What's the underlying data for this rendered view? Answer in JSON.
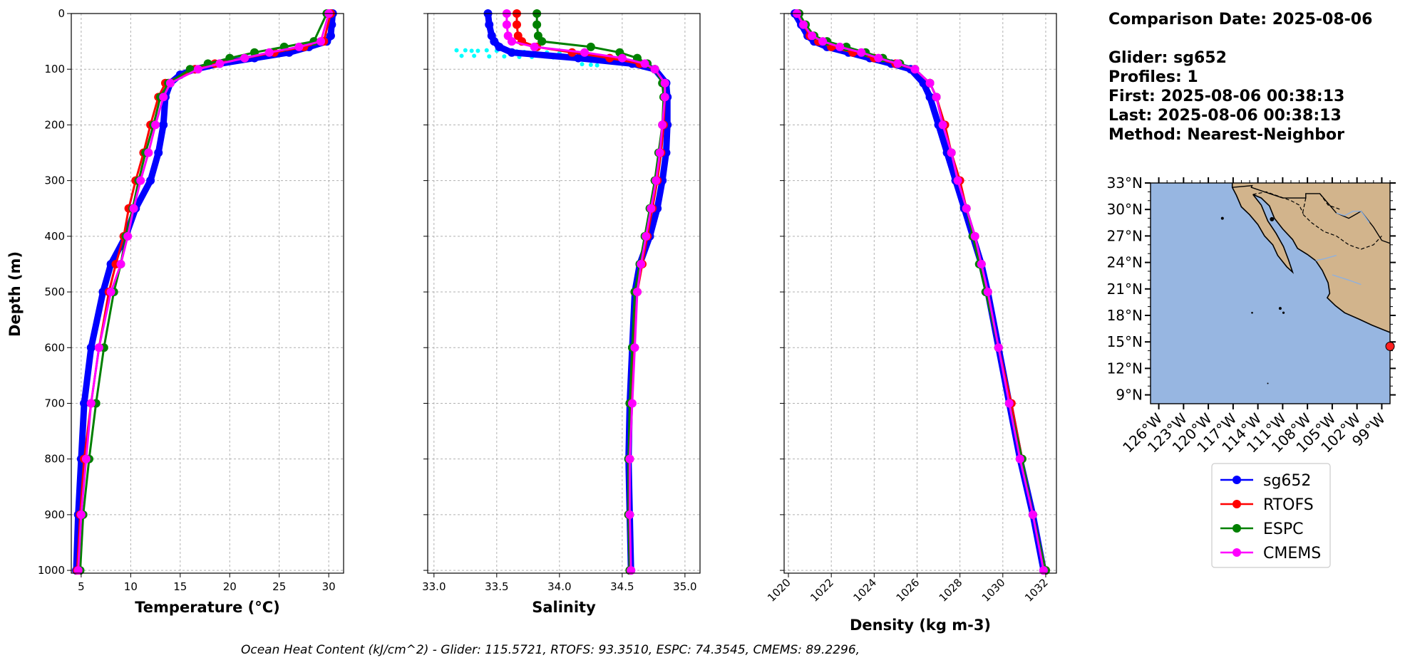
{
  "info": {
    "comparison_date": "Comparison Date: 2025-08-06",
    "glider": "Glider: sg652",
    "profiles": "Profiles: 1",
    "first": "First: 2025-08-06 00:38:13",
    "last": "Last: 2025-08-06 00:38:13",
    "method": "Method: Nearest-Neighbor"
  },
  "footer": "Ocean Heat Content (kJ/cm^2) - Glider: 115.5721,  RTOFS: 93.3510,  ESPC: 74.3545,  CMEMS: 89.2296,",
  "colors": {
    "sg652": "#0000ff",
    "glider_raw": "#00ffff",
    "RTOFS": "#ff0000",
    "ESPC": "#008000",
    "CMEMS": "#ff00ff",
    "ocean": "#97b6e1",
    "land": "#d2b48c",
    "grid": "#b0b0b0"
  },
  "chart_data": [
    {
      "type": "line",
      "id": "temperature",
      "xlabel": "Temperature (°C)",
      "ylabel": "Depth (m)",
      "xlim": [
        4.0,
        31.5
      ],
      "ylim": [
        1005,
        0
      ],
      "xticks": [
        5,
        10,
        15,
        20,
        25,
        30
      ],
      "yticks": [
        0,
        100,
        200,
        300,
        400,
        500,
        600,
        700,
        800,
        900,
        1000
      ],
      "grid": true,
      "series": [
        {
          "name": "sg652",
          "y": [
            0,
            20,
            40,
            50,
            60,
            70,
            80,
            90,
            100,
            110,
            125,
            150,
            200,
            250,
            300,
            350,
            400,
            450,
            500,
            600,
            700,
            800,
            900,
            1000
          ],
          "x": [
            30.4,
            30.3,
            30.2,
            29.8,
            28.0,
            26.0,
            22.5,
            19.0,
            16.5,
            15.0,
            14.0,
            13.5,
            13.3,
            12.8,
            12.0,
            10.5,
            9.5,
            8.0,
            7.2,
            6.0,
            5.3,
            5.0,
            4.7,
            4.5
          ]
        },
        {
          "name": "RTOFS",
          "y": [
            0,
            50,
            60,
            70,
            80,
            90,
            100,
            125,
            150,
            200,
            250,
            300,
            350,
            400,
            450,
            500,
            600,
            700,
            800,
            900,
            1000
          ],
          "x": [
            30.2,
            29.5,
            27.5,
            24.5,
            21.5,
            18.5,
            16.5,
            13.5,
            12.8,
            12.0,
            11.3,
            10.5,
            9.8,
            9.3,
            8.5,
            7.8,
            6.8,
            6.0,
            5.3,
            4.9,
            4.6
          ]
        },
        {
          "name": "ESPC",
          "y": [
            0,
            50,
            60,
            70,
            80,
            90,
            100,
            125,
            150,
            200,
            250,
            300,
            350,
            400,
            450,
            500,
            600,
            700,
            800,
            900,
            1000
          ],
          "x": [
            29.8,
            28.5,
            25.5,
            22.5,
            20.0,
            17.8,
            16.0,
            13.8,
            13.0,
            12.3,
            11.5,
            10.8,
            10.2,
            9.5,
            9.0,
            8.3,
            7.3,
            6.5,
            5.8,
            5.2,
            4.9
          ]
        },
        {
          "name": "CMEMS",
          "y": [
            0,
            50,
            60,
            70,
            80,
            90,
            100,
            125,
            150,
            200,
            250,
            300,
            350,
            400,
            450,
            500,
            600,
            700,
            800,
            900,
            1000
          ],
          "x": [
            30.0,
            29.2,
            27.0,
            24.0,
            21.5,
            19.0,
            16.8,
            14.0,
            13.3,
            12.5,
            11.8,
            11.0,
            10.3,
            9.7,
            9.0,
            8.0,
            6.8,
            6.0,
            5.5,
            5.0,
            4.7
          ]
        }
      ]
    },
    {
      "type": "line",
      "id": "salinity",
      "xlabel": "Salinity",
      "ylabel": "",
      "xlim": [
        32.95,
        35.12
      ],
      "ylim": [
        1005,
        0
      ],
      "xticks": [
        33.0,
        33.5,
        34.0,
        34.5,
        35.0
      ],
      "xtick_labels": [
        "33.0",
        "33.5",
        "34.0",
        "34.5",
        "35.0"
      ],
      "yticks": [
        0,
        100,
        200,
        300,
        400,
        500,
        600,
        700,
        800,
        900,
        1000
      ],
      "grid": true,
      "series": [
        {
          "name": "sg652",
          "y": [
            0,
            20,
            40,
            50,
            60,
            70,
            80,
            90,
            100,
            125,
            150,
            200,
            250,
            300,
            350,
            400,
            450,
            500,
            600,
            700,
            800,
            900,
            1000
          ],
          "x": [
            33.43,
            33.44,
            33.46,
            33.48,
            33.52,
            33.62,
            34.15,
            34.58,
            34.76,
            34.85,
            34.86,
            34.86,
            34.85,
            34.82,
            34.78,
            34.72,
            34.64,
            34.6,
            34.58,
            34.56,
            34.55,
            34.56,
            34.57
          ]
        },
        {
          "name": "RTOFS",
          "y": [
            0,
            20,
            40,
            50,
            60,
            70,
            80,
            90,
            100,
            125,
            150,
            200,
            250,
            300,
            350,
            400,
            450,
            500,
            600,
            700,
            800,
            900,
            1000
          ],
          "x": [
            33.66,
            33.66,
            33.67,
            33.7,
            33.82,
            34.1,
            34.4,
            34.64,
            34.76,
            34.84,
            34.84,
            34.83,
            34.81,
            34.78,
            34.74,
            34.7,
            34.66,
            34.62,
            34.59,
            34.57,
            34.56,
            34.55,
            34.56
          ]
        },
        {
          "name": "ESPC",
          "y": [
            0,
            20,
            40,
            50,
            60,
            70,
            80,
            90,
            100,
            125,
            150,
            200,
            250,
            300,
            350,
            400,
            450,
            500,
            600,
            700,
            800,
            900,
            1000
          ],
          "x": [
            33.82,
            33.82,
            33.83,
            33.86,
            34.25,
            34.48,
            34.62,
            34.7,
            34.76,
            34.82,
            34.83,
            34.82,
            34.79,
            34.76,
            34.72,
            34.68,
            34.64,
            34.6,
            34.58,
            34.56,
            34.55,
            34.55,
            34.56
          ]
        },
        {
          "name": "CMEMS",
          "y": [
            0,
            20,
            40,
            50,
            60,
            70,
            80,
            90,
            100,
            125,
            150,
            200,
            250,
            300,
            350,
            400,
            450,
            500,
            600,
            700,
            800,
            900,
            1000
          ],
          "x": [
            33.58,
            33.58,
            33.59,
            33.62,
            33.8,
            34.2,
            34.5,
            34.68,
            34.76,
            34.84,
            34.84,
            34.82,
            34.8,
            34.77,
            34.73,
            34.69,
            34.65,
            34.62,
            34.6,
            34.58,
            34.56,
            34.56,
            34.57
          ]
        }
      ],
      "scatter_points": {
        "name": "sg652 raw",
        "x": [
          33.18,
          33.25,
          33.3,
          33.35,
          33.42,
          33.5,
          33.58,
          33.66,
          33.72,
          33.8,
          33.9,
          34.0,
          34.1,
          33.22,
          33.32,
          33.44,
          33.56,
          33.68,
          33.78,
          33.95,
          34.18,
          34.25,
          34.3
        ],
        "y": [
          66,
          66,
          67,
          67,
          66,
          67,
          68,
          68,
          69,
          70,
          70,
          71,
          72,
          76,
          76,
          77,
          77,
          78,
          78,
          79,
          91,
          92,
          93
        ]
      }
    },
    {
      "type": "line",
      "id": "density",
      "xlabel": "Density (kg m-3)",
      "ylabel": "",
      "xlim": [
        1019.8,
        1032.5
      ],
      "ylim": [
        1005,
        0
      ],
      "xticks": [
        1020,
        1022,
        1024,
        1026,
        1028,
        1030,
        1032
      ],
      "yticks": [
        0,
        100,
        200,
        300,
        400,
        500,
        600,
        700,
        800,
        900,
        1000
      ],
      "grid": true,
      "series": [
        {
          "name": "sg652",
          "y": [
            0,
            20,
            40,
            50,
            60,
            70,
            80,
            90,
            100,
            125,
            150,
            200,
            250,
            300,
            350,
            400,
            450,
            500,
            600,
            700,
            800,
            900,
            1000
          ],
          "x": [
            1020.3,
            1020.6,
            1020.9,
            1021.2,
            1021.8,
            1022.8,
            1023.8,
            1024.8,
            1025.7,
            1026.3,
            1026.6,
            1027.0,
            1027.4,
            1027.8,
            1028.2,
            1028.6,
            1029.0,
            1029.3,
            1029.8,
            1030.3,
            1030.8,
            1031.4,
            1031.9
          ]
        },
        {
          "name": "RTOFS",
          "y": [
            0,
            20,
            40,
            50,
            60,
            70,
            80,
            90,
            100,
            125,
            150,
            200,
            250,
            300,
            350,
            400,
            450,
            500,
            600,
            700,
            800,
            900,
            1000
          ],
          "x": [
            1020.4,
            1020.7,
            1021.0,
            1021.4,
            1022.0,
            1023.0,
            1024.0,
            1025.0,
            1025.9,
            1026.6,
            1026.9,
            1027.3,
            1027.6,
            1028.0,
            1028.3,
            1028.7,
            1029.0,
            1029.3,
            1029.8,
            1030.4,
            1030.9,
            1031.4,
            1032.0
          ]
        },
        {
          "name": "ESPC",
          "y": [
            0,
            20,
            40,
            50,
            60,
            70,
            80,
            90,
            100,
            125,
            150,
            200,
            250,
            300,
            350,
            400,
            450,
            500,
            600,
            700,
            800,
            900,
            1000
          ],
          "x": [
            1020.5,
            1020.8,
            1021.2,
            1021.8,
            1022.7,
            1023.6,
            1024.4,
            1025.2,
            1025.9,
            1026.6,
            1026.9,
            1027.2,
            1027.6,
            1027.9,
            1028.3,
            1028.6,
            1028.9,
            1029.2,
            1029.8,
            1030.3,
            1030.9,
            1031.4,
            1032.0
          ]
        },
        {
          "name": "CMEMS",
          "y": [
            0,
            20,
            40,
            50,
            60,
            70,
            80,
            90,
            100,
            125,
            150,
            200,
            250,
            300,
            350,
            400,
            450,
            500,
            600,
            700,
            800,
            900,
            1000
          ],
          "x": [
            1020.4,
            1020.7,
            1021.1,
            1021.6,
            1022.4,
            1023.4,
            1024.2,
            1025.1,
            1025.9,
            1026.6,
            1026.9,
            1027.2,
            1027.6,
            1027.9,
            1028.3,
            1028.7,
            1029.0,
            1029.3,
            1029.8,
            1030.3,
            1030.8,
            1031.4,
            1031.9
          ]
        }
      ]
    },
    {
      "type": "map",
      "id": "location-map",
      "lat_ticks": [
        "33°N",
        "30°N",
        "27°N",
        "24°N",
        "21°N",
        "18°N",
        "15°N",
        "12°N",
        "9°N"
      ],
      "lon_ticks": [
        "126°W",
        "123°W",
        "120°W",
        "117°W",
        "114°W",
        "111°W",
        "108°W",
        "105°W",
        "102°W",
        "99°W"
      ],
      "lat_range": [
        8,
        33
      ],
      "lon_range": [
        -127,
        -98
      ],
      "marker": {
        "lat": 14.5,
        "lon": -98.0
      }
    }
  ],
  "legend": {
    "placement": "below-map",
    "items": [
      {
        "label": "sg652",
        "color": "#0000ff"
      },
      {
        "label": "RTOFS",
        "color": "#ff0000"
      },
      {
        "label": "ESPC",
        "color": "#008000"
      },
      {
        "label": "CMEMS",
        "color": "#ff00ff"
      }
    ]
  }
}
